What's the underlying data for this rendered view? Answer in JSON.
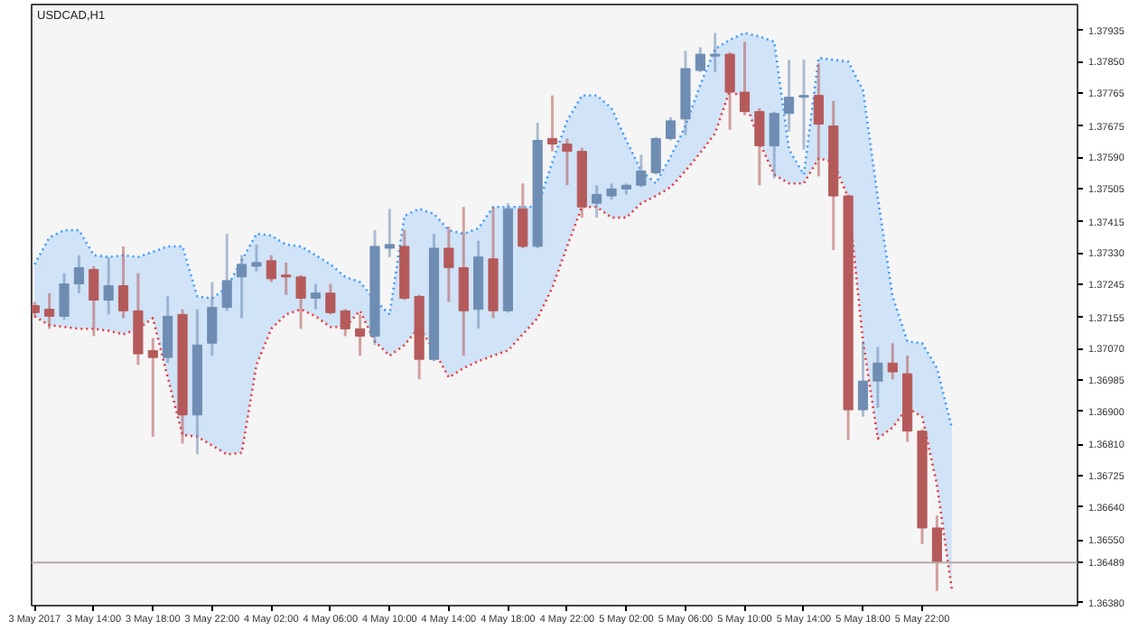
{
  "chart_data": {
    "type": "candlestick",
    "title": "USDCAD,H1",
    "x": [
      "2017-05-03T10:00",
      "2017-05-03T11:00",
      "2017-05-03T12:00",
      "2017-05-03T13:00",
      "2017-05-03T14:00",
      "2017-05-03T15:00",
      "2017-05-03T16:00",
      "2017-05-03T17:00",
      "2017-05-03T18:00",
      "2017-05-03T19:00",
      "2017-05-03T20:00",
      "2017-05-03T21:00",
      "2017-05-03T22:00",
      "2017-05-03T23:00",
      "2017-05-04T00:00",
      "2017-05-04T01:00",
      "2017-05-04T02:00",
      "2017-05-04T03:00",
      "2017-05-04T04:00",
      "2017-05-04T05:00",
      "2017-05-04T06:00",
      "2017-05-04T07:00",
      "2017-05-04T08:00",
      "2017-05-04T09:00",
      "2017-05-04T10:00",
      "2017-05-04T11:00",
      "2017-05-04T12:00",
      "2017-05-04T13:00",
      "2017-05-04T14:00",
      "2017-05-04T15:00",
      "2017-05-04T16:00",
      "2017-05-04T17:00",
      "2017-05-04T18:00",
      "2017-05-04T19:00",
      "2017-05-04T20:00",
      "2017-05-04T21:00",
      "2017-05-04T22:00",
      "2017-05-04T23:00",
      "2017-05-05T00:00",
      "2017-05-05T01:00",
      "2017-05-05T02:00",
      "2017-05-05T03:00",
      "2017-05-05T04:00",
      "2017-05-05T05:00",
      "2017-05-05T06:00",
      "2017-05-05T07:00",
      "2017-05-05T08:00",
      "2017-05-05T09:00",
      "2017-05-05T10:00",
      "2017-05-05T11:00",
      "2017-05-05T12:00",
      "2017-05-05T13:00",
      "2017-05-05T14:00",
      "2017-05-05T15:00",
      "2017-05-05T16:00",
      "2017-05-05T17:00",
      "2017-05-05T18:00",
      "2017-05-05T19:00",
      "2017-05-05T20:00",
      "2017-05-05T21:00",
      "2017-05-05T22:00",
      "2017-05-05T23:00"
    ],
    "ohlc": [
      [
        1.37187,
        1.37197,
        1.37158,
        1.37168
      ],
      [
        1.37177,
        1.37221,
        1.37124,
        1.37158
      ],
      [
        1.37158,
        1.37275,
        1.37148,
        1.37246
      ],
      [
        1.37246,
        1.37324,
        1.37221,
        1.3729
      ],
      [
        1.37285,
        1.37294,
        1.37104,
        1.37202
      ],
      [
        1.37202,
        1.37319,
        1.37163,
        1.37241
      ],
      [
        1.37241,
        1.37348,
        1.37153,
        1.37173
      ],
      [
        1.37173,
        1.37275,
        1.37026,
        1.37056
      ],
      [
        1.37065,
        1.37099,
        1.36831,
        1.37046
      ],
      [
        1.37046,
        1.37212,
        1.37031,
        1.37158
      ],
      [
        1.37163,
        1.37177,
        1.36812,
        1.3689
      ],
      [
        1.3689,
        1.37177,
        1.36783,
        1.3708
      ],
      [
        1.37085,
        1.37251,
        1.37051,
        1.37182
      ],
      [
        1.37182,
        1.37382,
        1.37173,
        1.37255
      ],
      [
        1.37265,
        1.37324,
        1.37153,
        1.37299
      ],
      [
        1.37294,
        1.37353,
        1.3728,
        1.37304
      ],
      [
        1.37309,
        1.37324,
        1.37251,
        1.3726
      ],
      [
        1.3727,
        1.37304,
        1.37216,
        1.37265
      ],
      [
        1.37265,
        1.3727,
        1.37124,
        1.37207
      ],
      [
        1.37207,
        1.37246,
        1.37177,
        1.37221
      ],
      [
        1.37221,
        1.37246,
        1.37163,
        1.37168
      ],
      [
        1.37173,
        1.37177,
        1.37104,
        1.37124
      ],
      [
        1.37124,
        1.37163,
        1.37051,
        1.37104
      ],
      [
        1.37104,
        1.37392,
        1.3708,
        1.37348
      ],
      [
        1.37343,
        1.3745,
        1.37319,
        1.37353
      ],
      [
        1.37348,
        1.37392,
        1.37202,
        1.37207
      ],
      [
        1.37212,
        1.37216,
        1.36987,
        1.37041
      ],
      [
        1.37041,
        1.37382,
        1.37036,
        1.37343
      ],
      [
        1.37343,
        1.37402,
        1.37197,
        1.3729
      ],
      [
        1.3729,
        1.37455,
        1.37051,
        1.37173
      ],
      [
        1.37177,
        1.37363,
        1.37124,
        1.37319
      ],
      [
        1.37314,
        1.37455,
        1.37153,
        1.37173
      ],
      [
        1.37173,
        1.37465,
        1.37168,
        1.3745
      ],
      [
        1.3745,
        1.37519,
        1.37343,
        1.37348
      ],
      [
        1.37348,
        1.37684,
        1.37343,
        1.37636
      ],
      [
        1.37641,
        1.37758,
        1.37606,
        1.37626
      ],
      [
        1.37626,
        1.37641,
        1.37514,
        1.37606
      ],
      [
        1.37606,
        1.37616,
        1.37426,
        1.37455
      ],
      [
        1.37465,
        1.37514,
        1.37426,
        1.37489
      ],
      [
        1.37485,
        1.37519,
        1.37475,
        1.37504
      ],
      [
        1.37504,
        1.37519,
        1.37489,
        1.37514
      ],
      [
        1.37514,
        1.37597,
        1.37509,
        1.37553
      ],
      [
        1.37548,
        1.37645,
        1.37543,
        1.37641
      ],
      [
        1.37641,
        1.37699,
        1.37636,
        1.37689
      ],
      [
        1.37694,
        1.37879,
        1.3765,
        1.37831
      ],
      [
        1.37826,
        1.37889,
        1.37821,
        1.3787
      ],
      [
        1.37865,
        1.37928,
        1.37821,
        1.3787
      ],
      [
        1.3787,
        1.37875,
        1.37665,
        1.37767
      ],
      [
        1.37767,
        1.37904,
        1.37704,
        1.37714
      ],
      [
        1.37714,
        1.37723,
        1.37514,
        1.37621
      ],
      [
        1.37621,
        1.37714,
        1.37533,
        1.37709
      ],
      [
        1.37709,
        1.37855,
        1.3766,
        1.37753
      ],
      [
        1.37753,
        1.37855,
        1.37611,
        1.37758
      ],
      [
        1.37758,
        1.37845,
        1.37538,
        1.3768
      ],
      [
        1.37675,
        1.37743,
        1.37338,
        1.37485
      ],
      [
        1.37485,
        1.37489,
        1.36822,
        1.36904
      ],
      [
        1.36904,
        1.3709,
        1.36885,
        1.36982
      ],
      [
        1.36982,
        1.37075,
        1.36909,
        1.37031
      ],
      [
        1.37031,
        1.37085,
        1.36987,
        1.37007
      ],
      [
        1.37002,
        1.37051,
        1.36817,
        1.36846
      ],
      [
        1.36846,
        1.36851,
        1.36539,
        1.36583
      ],
      [
        1.36583,
        1.36617,
        1.36412,
        1.36489
      ]
    ],
    "colors": [
      "#b55a5a",
      "#b55a5a",
      "#6f8db3",
      "#6f8db3",
      "#b55a5a",
      "#6f8db3",
      "#b55a5a",
      "#b55a5a",
      "#b55a5a",
      "#6f8db3",
      "#b55a5a",
      "#6f8db3",
      "#6f8db3",
      "#6f8db3",
      "#6f8db3",
      "#6f8db3",
      "#b55a5a",
      "#b55a5a",
      "#b55a5a",
      "#6f8db3",
      "#b55a5a",
      "#b55a5a",
      "#b55a5a",
      "#6f8db3",
      "#6f8db3",
      "#b55a5a",
      "#b55a5a",
      "#6f8db3",
      "#b55a5a",
      "#b55a5a",
      "#6f8db3",
      "#b55a5a",
      "#6f8db3",
      "#b55a5a",
      "#6f8db3",
      "#b55a5a",
      "#b55a5a",
      "#b55a5a",
      "#6f8db3",
      "#6f8db3",
      "#6f8db3",
      "#6f8db3",
      "#6f8db3",
      "#6f8db3",
      "#6f8db3",
      "#6f8db3",
      "#6f8db3",
      "#b55a5a",
      "#b55a5a",
      "#b55a5a",
      "#6f8db3",
      "#6f8db3",
      "#6f8db3",
      "#b55a5a",
      "#b55a5a",
      "#b55a5a",
      "#6f8db3",
      "#6f8db3",
      "#b55a5a",
      "#b55a5a",
      "#b55a5a",
      "#b55a5a"
    ],
    "series": [
      {
        "type": "line",
        "color": "#3d9bff",
        "line_style": "dotted",
        "x": [
          "2017-05-03T10:00",
          "2017-05-03T11:00",
          "2017-05-03T12:00",
          "2017-05-03T13:00",
          "2017-05-03T14:00",
          "2017-05-03T15:00",
          "2017-05-03T16:00",
          "2017-05-03T17:00",
          "2017-05-03T18:00",
          "2017-05-03T19:00",
          "2017-05-03T20:00",
          "2017-05-03T21:00",
          "2017-05-03T22:00",
          "2017-05-03T23:00",
          "2017-05-04T00:00",
          "2017-05-04T01:00",
          "2017-05-04T02:00",
          "2017-05-04T03:00",
          "2017-05-04T04:00",
          "2017-05-04T05:00",
          "2017-05-04T06:00",
          "2017-05-04T07:00",
          "2017-05-04T08:00",
          "2017-05-04T09:00",
          "2017-05-04T10:00",
          "2017-05-04T11:00",
          "2017-05-04T12:00",
          "2017-05-04T13:00",
          "2017-05-04T14:00",
          "2017-05-04T15:00",
          "2017-05-04T16:00",
          "2017-05-04T17:00",
          "2017-05-04T18:00",
          "2017-05-04T19:00",
          "2017-05-04T20:00",
          "2017-05-04T21:00",
          "2017-05-04T22:00",
          "2017-05-04T23:00",
          "2017-05-05T00:00",
          "2017-05-05T01:00",
          "2017-05-05T02:00",
          "2017-05-05T03:00",
          "2017-05-05T04:00",
          "2017-05-05T05:00",
          "2017-05-05T06:00",
          "2017-05-05T07:00",
          "2017-05-05T08:00",
          "2017-05-05T09:00",
          "2017-05-05T10:00",
          "2017-05-05T11:00",
          "2017-05-05T12:00",
          "2017-05-05T13:00",
          "2017-05-05T14:00",
          "2017-05-05T15:00",
          "2017-05-05T16:00",
          "2017-05-05T17:00",
          "2017-05-05T18:00",
          "2017-05-05T19:00",
          "2017-05-05T20:00",
          "2017-05-05T21:00",
          "2017-05-05T22:00",
          "2017-05-05T23:00",
          "2017-05-06T00:00"
        ],
        "values": [
          1.37299,
          1.37372,
          1.37392,
          1.37392,
          1.37324,
          1.37319,
          1.37324,
          1.37319,
          1.37333,
          1.37348,
          1.37348,
          1.37212,
          1.37207,
          1.37236,
          1.37309,
          1.37382,
          1.37377,
          1.37353,
          1.37348,
          1.37324,
          1.37299,
          1.37265,
          1.37251,
          1.37202,
          1.37163,
          1.37431,
          1.3745,
          1.37436,
          1.37392,
          1.37382,
          1.37397,
          1.37455,
          1.37455,
          1.37455,
          1.37455,
          1.37577,
          1.37689,
          1.37758,
          1.37758,
          1.37723,
          1.37636,
          1.37553,
          1.37519,
          1.37592,
          1.37675,
          1.37787,
          1.37884,
          1.37909,
          1.37928,
          1.37918,
          1.37904,
          1.37611,
          1.37543,
          1.3786,
          1.37855,
          1.3785,
          1.37772,
          1.3748,
          1.37212,
          1.3709,
          1.37085,
          1.37017,
          1.36856
        ],
        "lower": [
          1.37158,
          1.37134,
          1.37129,
          1.37124,
          1.37124,
          1.37119,
          1.37109,
          1.37124,
          1.37153,
          1.36992,
          1.36836,
          1.36831,
          1.36807,
          1.36783,
          1.36787,
          1.37026,
          1.37124,
          1.37163,
          1.37177,
          1.37158,
          1.37129,
          1.37129,
          1.37173,
          1.3709,
          1.37051,
          1.3708,
          1.37129,
          1.37065,
          1.36992,
          1.37017,
          1.37036,
          1.37051,
          1.37065,
          1.37109,
          1.37153,
          1.37236,
          1.37348,
          1.37455,
          1.37455,
          1.37426,
          1.37426,
          1.37465,
          1.37485,
          1.37509,
          1.37553,
          1.37602,
          1.37655,
          1.37772,
          1.37748,
          1.37631,
          1.37543,
          1.37519,
          1.37519,
          1.37587,
          1.37577,
          1.3748,
          1.3709,
          1.36826,
          1.36856,
          1.36909,
          1.36885,
          1.367,
          1.36417
        ],
        "upper": [
          1.37299,
          1.37372,
          1.37392,
          1.37392,
          1.37324,
          1.37319,
          1.37324,
          1.37319,
          1.37333,
          1.37348,
          1.37348,
          1.37212,
          1.37207,
          1.37236,
          1.37309,
          1.37382,
          1.37377,
          1.37353,
          1.37348,
          1.37324,
          1.37299,
          1.37265,
          1.37251,
          1.37202,
          1.37163,
          1.37431,
          1.3745,
          1.37436,
          1.37392,
          1.37382,
          1.37397,
          1.37455,
          1.37455,
          1.37455,
          1.37455,
          1.37577,
          1.37689,
          1.37758,
          1.37758,
          1.37723,
          1.37636,
          1.37553,
          1.37519,
          1.37592,
          1.37675,
          1.37787,
          1.37884,
          1.37909,
          1.37928,
          1.37918,
          1.37904,
          1.37611,
          1.37543,
          1.3786,
          1.37855,
          1.3785,
          1.37772,
          1.3748,
          1.37212,
          1.3709,
          1.37085,
          1.37017,
          1.36856
        ]
      },
      {
        "type": "line",
        "color": "#e83a3a",
        "line_style": "dotted",
        "x": [
          "2017-05-03T10:00",
          "2017-05-03T11:00",
          "2017-05-03T12:00",
          "2017-05-03T13:00",
          "2017-05-03T14:00",
          "2017-05-03T15:00",
          "2017-05-03T16:00",
          "2017-05-03T17:00",
          "2017-05-03T18:00",
          "2017-05-03T19:00",
          "2017-05-03T20:00",
          "2017-05-03T21:00",
          "2017-05-03T22:00",
          "2017-05-03T23:00",
          "2017-05-04T00:00",
          "2017-05-04T01:00",
          "2017-05-04T02:00",
          "2017-05-04T03:00",
          "2017-05-04T04:00",
          "2017-05-04T05:00",
          "2017-05-04T06:00",
          "2017-05-04T07:00",
          "2017-05-04T08:00",
          "2017-05-04T09:00",
          "2017-05-04T10:00",
          "2017-05-04T11:00",
          "2017-05-04T12:00",
          "2017-05-04T13:00",
          "2017-05-04T14:00",
          "2017-05-04T15:00",
          "2017-05-04T16:00",
          "2017-05-04T17:00",
          "2017-05-04T18:00",
          "2017-05-04T19:00",
          "2017-05-04T20:00",
          "2017-05-04T21:00",
          "2017-05-04T22:00",
          "2017-05-04T23:00",
          "2017-05-05T00:00",
          "2017-05-05T01:00",
          "2017-05-05T02:00",
          "2017-05-05T03:00",
          "2017-05-05T04:00",
          "2017-05-05T05:00",
          "2017-05-05T06:00",
          "2017-05-05T07:00",
          "2017-05-05T08:00",
          "2017-05-05T09:00",
          "2017-05-05T10:00",
          "2017-05-05T11:00",
          "2017-05-05T12:00",
          "2017-05-05T13:00",
          "2017-05-05T14:00",
          "2017-05-05T15:00",
          "2017-05-05T16:00",
          "2017-05-05T17:00",
          "2017-05-05T18:00",
          "2017-05-05T19:00",
          "2017-05-05T20:00",
          "2017-05-05T21:00",
          "2017-05-05T22:00",
          "2017-05-05T23:00",
          "2017-05-06T00:00"
        ],
        "values": [
          1.37158,
          1.37134,
          1.37129,
          1.37124,
          1.37124,
          1.37119,
          1.37109,
          1.37124,
          1.37153,
          1.36992,
          1.36836,
          1.36831,
          1.36807,
          1.36783,
          1.36787,
          1.37026,
          1.37124,
          1.37163,
          1.37177,
          1.37158,
          1.37129,
          1.37129,
          1.37173,
          1.3709,
          1.37051,
          1.3708,
          1.37129,
          1.37065,
          1.36992,
          1.37017,
          1.37036,
          1.37051,
          1.37065,
          1.37109,
          1.37153,
          1.37236,
          1.37348,
          1.37455,
          1.37455,
          1.37426,
          1.37426,
          1.37465,
          1.37485,
          1.37509,
          1.37553,
          1.37602,
          1.37655,
          1.37772,
          1.37748,
          1.37631,
          1.37543,
          1.37519,
          1.37519,
          1.37587,
          1.37577,
          1.3748,
          1.3709,
          1.36826,
          1.36856,
          1.36909,
          1.36885,
          1.367,
          1.36417
        ]
      }
    ],
    "xlim": [
      "2017-05-03T09:48",
      "2017-05-06T08:30"
    ],
    "xticks": [
      {
        "value": "2017-05-03T10:00",
        "label": "3 May 2017"
      },
      {
        "value": "2017-05-03T14:00",
        "label": "3 May 14:00"
      },
      {
        "value": "2017-05-03T18:00",
        "label": "3 May 18:00"
      },
      {
        "value": "2017-05-03T22:00",
        "label": "3 May 22:00"
      },
      {
        "value": "2017-05-04T02:00",
        "label": "4 May 02:00"
      },
      {
        "value": "2017-05-04T06:00",
        "label": "4 May 06:00"
      },
      {
        "value": "2017-05-04T10:00",
        "label": "4 May 10:00"
      },
      {
        "value": "2017-05-04T14:00",
        "label": "4 May 14:00"
      },
      {
        "value": "2017-05-04T18:00",
        "label": "4 May 18:00"
      },
      {
        "value": "2017-05-04T22:00",
        "label": "4 May 22:00"
      },
      {
        "value": "2017-05-05T02:00",
        "label": "5 May 02:00"
      },
      {
        "value": "2017-05-05T06:00",
        "label": "5 May 06:00"
      },
      {
        "value": "2017-05-05T10:00",
        "label": "5 May 10:00"
      },
      {
        "value": "2017-05-05T14:00",
        "label": "5 May 14:00"
      },
      {
        "value": "2017-05-05T18:00",
        "label": "5 May 18:00"
      },
      {
        "value": "2017-05-05T22:00",
        "label": "5 May 22:00"
      }
    ],
    "ylim": [
      1.36372,
      1.38005
    ],
    "yticks": [
      1.37935,
      {
        "value": 1.3785,
        "label": "1.37850"
      },
      1.37765,
      1.37675,
      {
        "value": 1.3759,
        "label": "1.37590"
      },
      1.37505,
      1.37415,
      {
        "value": 1.3733,
        "label": "1.37330"
      },
      1.37245,
      1.37155,
      {
        "value": 1.3707,
        "label": "1.37070"
      },
      1.36985,
      {
        "value": 1.369,
        "label": "1.36900"
      },
      {
        "value": 1.3681,
        "label": "1.36810"
      },
      1.36725,
      {
        "value": 1.3664,
        "label": "1.36640"
      },
      {
        "value": 1.3655,
        "label": "1.36550"
      },
      {
        "value": 1.3638,
        "label": "1.36380"
      }
    ],
    "ref_lines": [
      {
        "axis": "y",
        "value": 1.36489,
        "label": "1.36489",
        "color": "#b8a8a8"
      }
    ],
    "grid": false
  }
}
